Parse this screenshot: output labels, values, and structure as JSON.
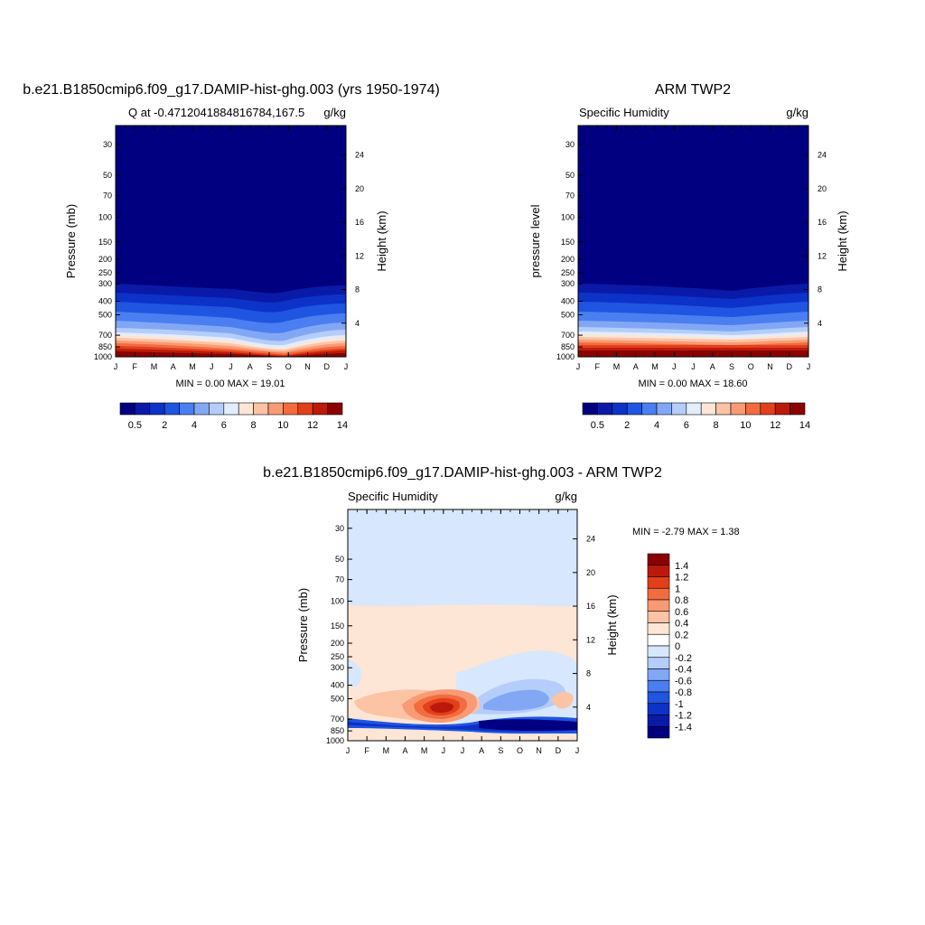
{
  "chart_data": [
    {
      "type": "heatmap",
      "title": "b.e21.B1850cmip6.f09_g17.DAMIP-hist-ghg.003 (yrs 1950-1974)",
      "left_string": "Q at -0.47120418848167​84,167.5",
      "right_string": "g/kg",
      "ylabel": "Pressure (mb)",
      "y2label": "Height (km)",
      "x_ticks": [
        "J",
        "F",
        "M",
        "A",
        "M",
        "J",
        "J",
        "A",
        "S",
        "O",
        "N",
        "D",
        "J"
      ],
      "y_ticks": [
        "30",
        "50",
        "70",
        "100",
        "150",
        "200",
        "250",
        "300",
        "400",
        "500",
        "700",
        "850",
        "1000"
      ],
      "y2_ticks": [
        "24",
        "20",
        "16",
        "12",
        "8",
        "4"
      ],
      "stats": "MIN =   0.00 MAX =  19.01",
      "min": 0.0,
      "max": 19.01,
      "colorbar": {
        "orientation": "horizontal",
        "labels": [
          "0.5",
          "2",
          "4",
          "6",
          "8",
          "10",
          "12",
          "14"
        ],
        "colors": [
          "#000080",
          "#0a1aa8",
          "#0d32c8",
          "#1f55e0",
          "#4b7ef0",
          "#82a8f5",
          "#b5cdfa",
          "#e2edfd",
          "#fde6d6",
          "#fcc3a5",
          "#f89b74",
          "#f26c40",
          "#e2401b",
          "#bb1a0b",
          "#8a0000"
        ]
      }
    },
    {
      "type": "heatmap",
      "title": "ARM TWP2",
      "left_string": "Specific Humidity",
      "right_string": "g/kg",
      "ylabel": "pressure level",
      "y2label": "Height (km)",
      "x_ticks": [
        "J",
        "F",
        "M",
        "A",
        "M",
        "J",
        "J",
        "A",
        "S",
        "O",
        "N",
        "D",
        "J"
      ],
      "y_ticks": [
        "30",
        "50",
        "70",
        "100",
        "150",
        "200",
        "250",
        "300",
        "400",
        "500",
        "700",
        "850",
        "1000"
      ],
      "y2_ticks": [
        "24",
        "20",
        "16",
        "12",
        "8",
        "4"
      ],
      "stats": "MIN =   0.00 MAX =  18.60",
      "min": 0.0,
      "max": 18.6,
      "colorbar": {
        "orientation": "horizontal",
        "labels": [
          "0.5",
          "2",
          "4",
          "6",
          "8",
          "10",
          "12",
          "14"
        ],
        "colors": [
          "#000080",
          "#0a1aa8",
          "#0d32c8",
          "#1f55e0",
          "#4b7ef0",
          "#82a8f5",
          "#b5cdfa",
          "#e2edfd",
          "#fde6d6",
          "#fcc3a5",
          "#f89b74",
          "#f26c40",
          "#e2401b",
          "#bb1a0b",
          "#8a0000"
        ]
      }
    },
    {
      "type": "heatmap",
      "title": "b.e21.B1850cmip6.f09_g17.DAMIP-hist-ghg.003 - ARM TWP2",
      "left_string": "Specific Humidity",
      "right_string": "g/kg",
      "ylabel": "Pressure (mb)",
      "y2label": "Height (km)",
      "x_ticks": [
        "J",
        "F",
        "M",
        "A",
        "M",
        "J",
        "J",
        "A",
        "S",
        "O",
        "N",
        "D",
        "J"
      ],
      "y_ticks": [
        "30",
        "50",
        "70",
        "100",
        "150",
        "200",
        "250",
        "300",
        "400",
        "500",
        "700",
        "850",
        "1000"
      ],
      "y2_ticks": [
        "24",
        "20",
        "16",
        "12",
        "8",
        "4"
      ],
      "stats": "MIN =  -2.79 MAX =   1.38",
      "min": -2.79,
      "max": 1.38,
      "colorbar": {
        "orientation": "vertical",
        "labels": [
          "1.4",
          "1.2",
          "1",
          "0.8",
          "0.6",
          "0.4",
          "0.2",
          "0",
          "-0.2",
          "-0.4",
          "-0.6",
          "-0.8",
          "-1",
          "-1.2",
          "-1.4"
        ],
        "colors": [
          "#8a0000",
          "#bb1a0b",
          "#e2401b",
          "#f26c40",
          "#f89b74",
          "#fcc3a5",
          "#fde6d6",
          "#ffffff",
          "#d7e7fd",
          "#b5cdfa",
          "#82a8f5",
          "#4b7ef0",
          "#1f55e0",
          "#0d32c8",
          "#0a1aa8",
          "#000080"
        ]
      }
    }
  ]
}
